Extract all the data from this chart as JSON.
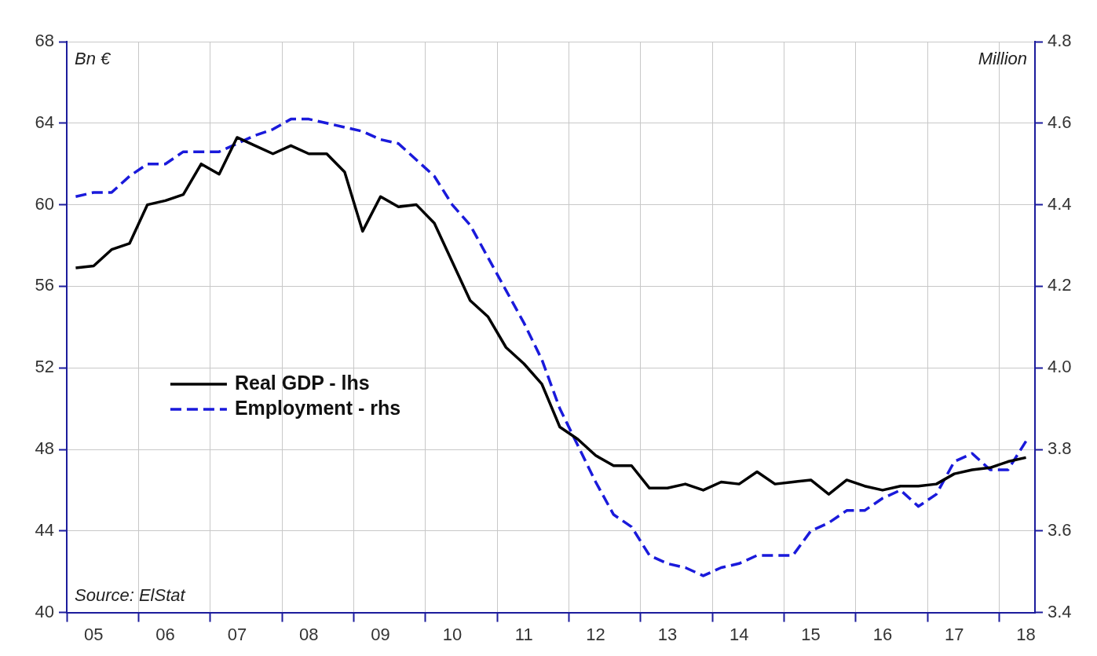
{
  "chart_data": {
    "type": "line",
    "ylabel": "Bn €",
    "y2label": "Million",
    "annotations": [
      "Source: ElStat"
    ],
    "categories": [
      null,
      "05",
      null,
      null,
      null,
      "06",
      null,
      null,
      null,
      "07",
      null,
      null,
      null,
      "08",
      null,
      null,
      null,
      "09",
      null,
      null,
      null,
      "10",
      null,
      null,
      null,
      "11",
      null,
      null,
      null,
      "12",
      null,
      null,
      null,
      "13",
      null,
      null,
      null,
      "14",
      null,
      null,
      null,
      "15",
      null,
      null,
      null,
      "16",
      null,
      null,
      null,
      "17",
      null,
      null,
      null,
      "18"
    ],
    "series": [
      {
        "name": "Real GDP - lhs",
        "color": "#000000",
        "line_style": "solid",
        "values": [
          56.9,
          57.0,
          57.8,
          58.1,
          60.0,
          60.2,
          60.5,
          62.0,
          61.5,
          63.3,
          62.9,
          62.5,
          62.9,
          62.5,
          62.5,
          61.6,
          58.7,
          60.4,
          59.9,
          60.0,
          59.1,
          57.2,
          55.3,
          54.5,
          53.0,
          52.2,
          51.2,
          49.1,
          48.5,
          47.7,
          47.2,
          47.2,
          46.1,
          46.1,
          46.3,
          46.0,
          46.4,
          46.3,
          46.9,
          46.3,
          46.4,
          46.5,
          45.8,
          46.5,
          46.2,
          46.0,
          46.2,
          46.2,
          46.3,
          46.8,
          47.0,
          47.1,
          47.4,
          47.6
        ]
      },
      {
        "name": "Employment - rhs",
        "color": "#1a1adb",
        "line_style": "dashed",
        "axis": "y2",
        "values": [
          4.42,
          4.43,
          4.43,
          4.47,
          4.5,
          4.5,
          4.53,
          4.53,
          4.53,
          4.55,
          4.57,
          4.585,
          4.61,
          4.61,
          4.6,
          4.59,
          4.58,
          4.56,
          4.55,
          4.51,
          4.47,
          4.4,
          4.35,
          4.27,
          4.19,
          4.11,
          4.02,
          3.9,
          3.81,
          3.72,
          3.64,
          3.61,
          3.54,
          3.52,
          3.51,
          3.49,
          3.51,
          3.52,
          3.54,
          3.54,
          3.54,
          3.6,
          3.62,
          3.65,
          3.65,
          3.68,
          3.7,
          3.66,
          3.69,
          3.77,
          3.79,
          3.75,
          3.75,
          3.82
        ]
      }
    ],
    "ylim": [
      40,
      68
    ],
    "yticks": [
      40,
      44,
      48,
      52,
      56,
      60,
      64,
      68
    ],
    "y2lim": [
      3.4,
      4.8
    ],
    "y2ticks": [
      3.4,
      3.6,
      3.8,
      {
        "value": 4,
        "label": "4.0"
      },
      4.2,
      4.4,
      4.6,
      4.8
    ],
    "grid": true,
    "legend": "left",
    "marker": "none"
  }
}
